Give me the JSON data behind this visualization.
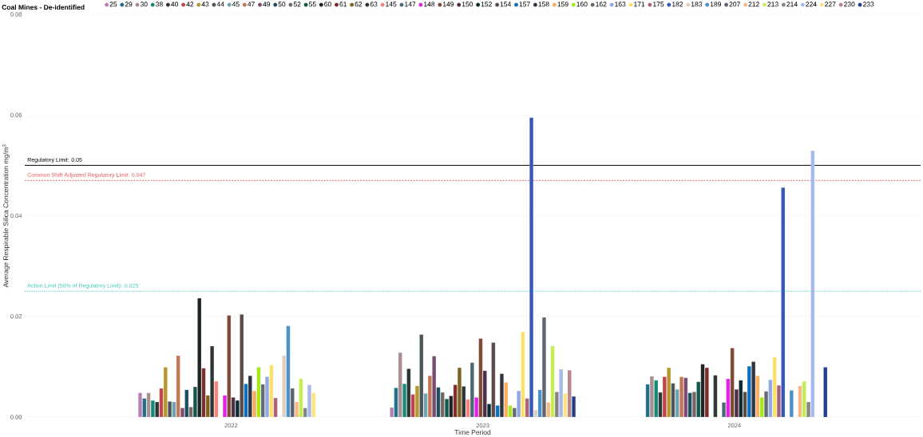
{
  "chart_data": {
    "type": "bar",
    "legend_title": "Coal Mines - De-identified",
    "legend": "top",
    "grid": "y",
    "xlabel": "Time Period",
    "ylabel": "Average Respirable Silica Concentration mg/m$^{3}$",
    "categories": [
      "2022",
      "2023",
      "2024"
    ],
    "ylim": [
      0,
      0.08
    ],
    "yticks": [
      {
        "value": 0,
        "label": "0.00"
      },
      {
        "value": 0.02,
        "label": "0.02"
      },
      {
        "value": 0.04,
        "label": "0.04"
      },
      {
        "value": 0.06,
        "label": "0.06"
      },
      {
        "value": 0.08,
        "label": "0.08"
      }
    ],
    "ref_lines": [
      {
        "axis": "y",
        "value": 0.05,
        "label": "Regulatory Limit: 0.05",
        "color": "#000000",
        "line_style": "solid"
      },
      {
        "axis": "y",
        "value": 0.047,
        "label": "Common Shift Adjusted Regulatory Limit: 0.047",
        "color": "#e8575a",
        "line_style": "dashed"
      },
      {
        "axis": "y",
        "value": 0.025,
        "label": "Action Limit (50% of Regulatory Limit): 0.025",
        "color": "#3cc7bd",
        "line_style": "dotted"
      }
    ],
    "series": [
      {
        "name": "25",
        "color": "#b57fb3",
        "values": [
          0.0048,
          0.0019,
          null
        ]
      },
      {
        "name": "29",
        "color": "#1f6f8b",
        "values": [
          0.0037,
          0.0058,
          0.0065
        ]
      },
      {
        "name": "30",
        "color": "#a98e8e",
        "values": [
          0.0048,
          0.0128,
          0.0081
        ]
      },
      {
        "name": "38",
        "color": "#168a78",
        "values": [
          0.0033,
          0.0066,
          0.0073
        ]
      },
      {
        "name": "40",
        "color": "#2b3436",
        "values": [
          0.003,
          0.0096,
          0.0049
        ]
      },
      {
        "name": "42",
        "color": "#c0454b",
        "values": [
          0.0057,
          0.0045,
          0.008
        ]
      },
      {
        "name": "43",
        "color": "#b8962e",
        "values": [
          0.0099,
          0.0062,
          0.0098
        ]
      },
      {
        "name": "44",
        "color": "#4b5657",
        "values": [
          0.0031,
          0.0164,
          0.0067
        ]
      },
      {
        "name": "45",
        "color": "#6da3b0",
        "values": [
          0.003,
          0.0047,
          0.0055
        ]
      },
      {
        "name": "47",
        "color": "#c37654",
        "values": [
          0.0122,
          0.0082,
          0.008
        ]
      },
      {
        "name": "49",
        "color": "#7b4c72",
        "values": [
          0.0018,
          0.0121,
          0.0078
        ]
      },
      {
        "name": "50",
        "color": "#1b4e5e",
        "values": [
          0.0054,
          0.0059,
          0.0048
        ]
      },
      {
        "name": "52",
        "color": "#756664",
        "values": [
          0.002,
          0.0049,
          0.005
        ]
      },
      {
        "name": "55",
        "color": "#12574b",
        "values": [
          0.006,
          0.0036,
          0.007
        ]
      },
      {
        "name": "60",
        "color": "#1c2424",
        "values": [
          0.0236,
          0.0042,
          0.0105
        ]
      },
      {
        "name": "61",
        "color": "#7d2c2c",
        "values": [
          0.0097,
          0.0064,
          0.0098
        ]
      },
      {
        "name": "62",
        "color": "#7a6420",
        "values": [
          0.0043,
          0.0098,
          null
        ]
      },
      {
        "name": "63",
        "color": "#2f3535",
        "values": [
          0.0141,
          0.0061,
          0.0083
        ]
      },
      {
        "name": "145",
        "color": "#fa8080",
        "values": [
          0.0071,
          0.0035,
          null
        ]
      },
      {
        "name": "147",
        "color": "#466b73",
        "values": [
          null,
          0.0108,
          0.0029
        ]
      },
      {
        "name": "148",
        "color": "#e61ee6",
        "values": [
          0.0043,
          0.0039,
          0.0076
        ]
      },
      {
        "name": "149",
        "color": "#7d4a36",
        "values": [
          0.0202,
          0.0156,
          0.0137
        ]
      },
      {
        "name": "150",
        "color": "#4c2d48",
        "values": [
          0.0039,
          0.0092,
          0.0055
        ]
      },
      {
        "name": "152",
        "color": "#0d2a2e",
        "values": [
          0.0033,
          0.0026,
          0.0073
        ]
      },
      {
        "name": "154",
        "color": "#5a4a4a",
        "values": [
          0.0204,
          0.0148,
          0.005
        ]
      },
      {
        "name": "157",
        "color": "#0a6ebd",
        "values": [
          0.0066,
          0.0023,
          0.0101
        ]
      },
      {
        "name": "158",
        "color": "#2e3440",
        "values": [
          0.0082,
          0.0086,
          0.011
        ]
      },
      {
        "name": "159",
        "color": "#f9ae5e",
        "values": [
          0.0052,
          0.0069,
          0.0082
        ]
      },
      {
        "name": "160",
        "color": "#a5e81c",
        "values": [
          0.0099,
          0.0023,
          0.0039
        ]
      },
      {
        "name": "162",
        "color": "#646b73",
        "values": [
          0.0065,
          0.0018,
          0.0051
        ]
      },
      {
        "name": "163",
        "color": "#8fa8e8",
        "values": [
          0.008,
          0.0052,
          0.0074
        ]
      },
      {
        "name": "171",
        "color": "#fde068",
        "values": [
          0.0103,
          0.0169,
          0.0119
        ]
      },
      {
        "name": "175",
        "color": "#a8637a",
        "values": [
          0.0038,
          0.0037,
          0.0063
        ]
      },
      {
        "name": "182",
        "color": "#3558b8",
        "values": [
          null,
          0.0595,
          0.0456
        ]
      },
      {
        "name": "183",
        "color": "#e0cfbc",
        "values": [
          0.0122,
          0.0014,
          null
        ]
      },
      {
        "name": "189",
        "color": "#4a91c8",
        "values": [
          0.0181,
          0.0054,
          0.0053
        ]
      },
      {
        "name": "207",
        "color": "#5d6470",
        "values": [
          0.0057,
          0.0198,
          null
        ]
      },
      {
        "name": "212",
        "color": "#f8b986",
        "values": [
          0.003,
          0.0029,
          0.0062
        ]
      },
      {
        "name": "213",
        "color": "#c5ec52",
        "values": [
          0.0076,
          0.0141,
          0.0071
        ]
      },
      {
        "name": "214",
        "color": "#858585",
        "values": [
          0.0018,
          0.005,
          0.003
        ]
      },
      {
        "name": "224",
        "color": "#a8b8ec",
        "values": [
          0.0064,
          0.0095,
          0.0529
        ]
      },
      {
        "name": "227",
        "color": "#fde480",
        "values": [
          0.0048,
          0.0047,
          null
        ]
      },
      {
        "name": "230",
        "color": "#b9868e",
        "values": [
          null,
          0.0093,
          null
        ]
      },
      {
        "name": "233",
        "color": "#223f8a",
        "values": [
          null,
          0.0041,
          0.0099
        ]
      }
    ]
  }
}
